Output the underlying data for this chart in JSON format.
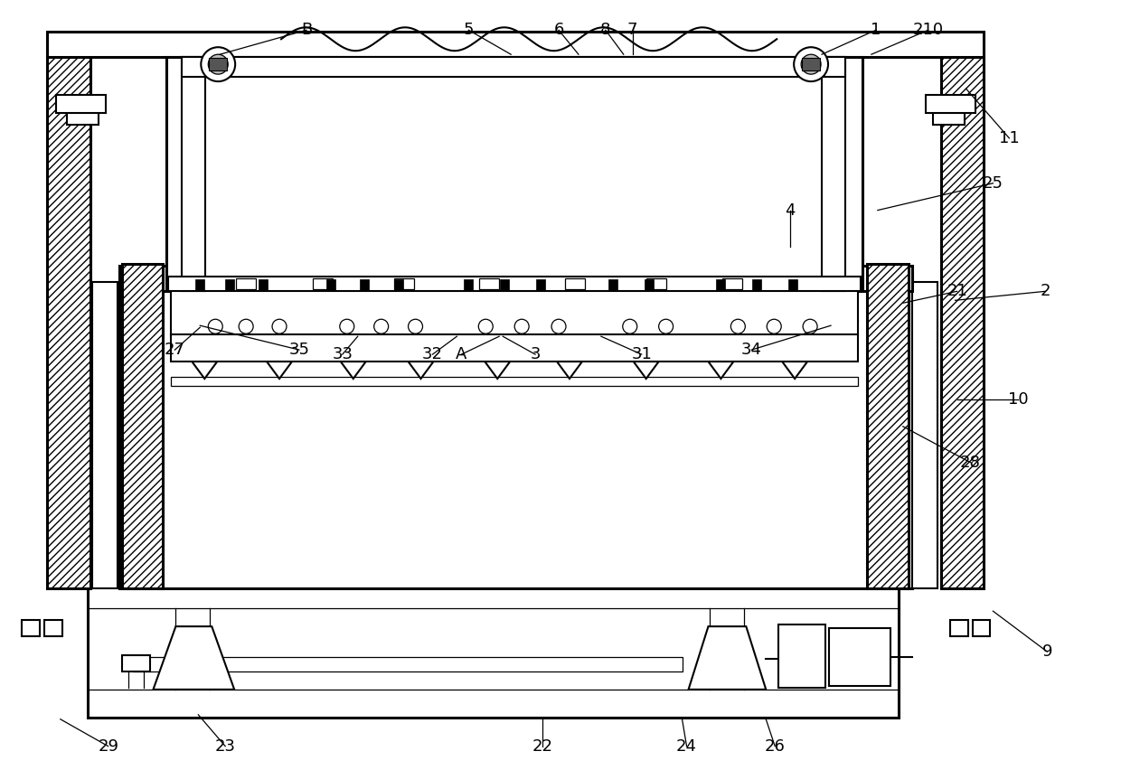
{
  "bg_color": "#ffffff",
  "line_color": "#000000",
  "annotations": [
    [
      "1",
      970,
      820,
      910,
      793
    ],
    [
      "2",
      1158,
      530,
      1058,
      520
    ],
    [
      "4",
      875,
      620,
      875,
      580
    ],
    [
      "5",
      518,
      820,
      565,
      793
    ],
    [
      "6",
      618,
      820,
      640,
      793
    ],
    [
      "7",
      700,
      820,
      700,
      793
    ],
    [
      "8",
      670,
      820,
      690,
      793
    ],
    [
      "9",
      1160,
      130,
      1100,
      175
    ],
    [
      "10",
      1128,
      410,
      1060,
      410
    ],
    [
      "11",
      1118,
      700,
      1070,
      755
    ],
    [
      "21",
      1060,
      530,
      1000,
      517
    ],
    [
      "22",
      600,
      25,
      600,
      55
    ],
    [
      "23",
      248,
      25,
      218,
      60
    ],
    [
      "24",
      760,
      25,
      755,
      55
    ],
    [
      "25",
      1100,
      650,
      972,
      620
    ],
    [
      "26",
      858,
      25,
      848,
      55
    ],
    [
      "27",
      192,
      465,
      220,
      490
    ],
    [
      "28",
      1075,
      340,
      1000,
      380
    ],
    [
      "29",
      118,
      25,
      65,
      55
    ],
    [
      "31",
      710,
      460,
      665,
      480
    ],
    [
      "32",
      478,
      460,
      505,
      480
    ],
    [
      "33",
      378,
      460,
      395,
      480
    ],
    [
      "34",
      832,
      465,
      920,
      492
    ],
    [
      "35",
      330,
      465,
      220,
      492
    ],
    [
      "210",
      1028,
      820,
      965,
      793
    ],
    [
      "A",
      510,
      460,
      552,
      480
    ],
    [
      "B",
      338,
      820,
      242,
      793
    ],
    [
      "3",
      592,
      460,
      556,
      480
    ]
  ]
}
